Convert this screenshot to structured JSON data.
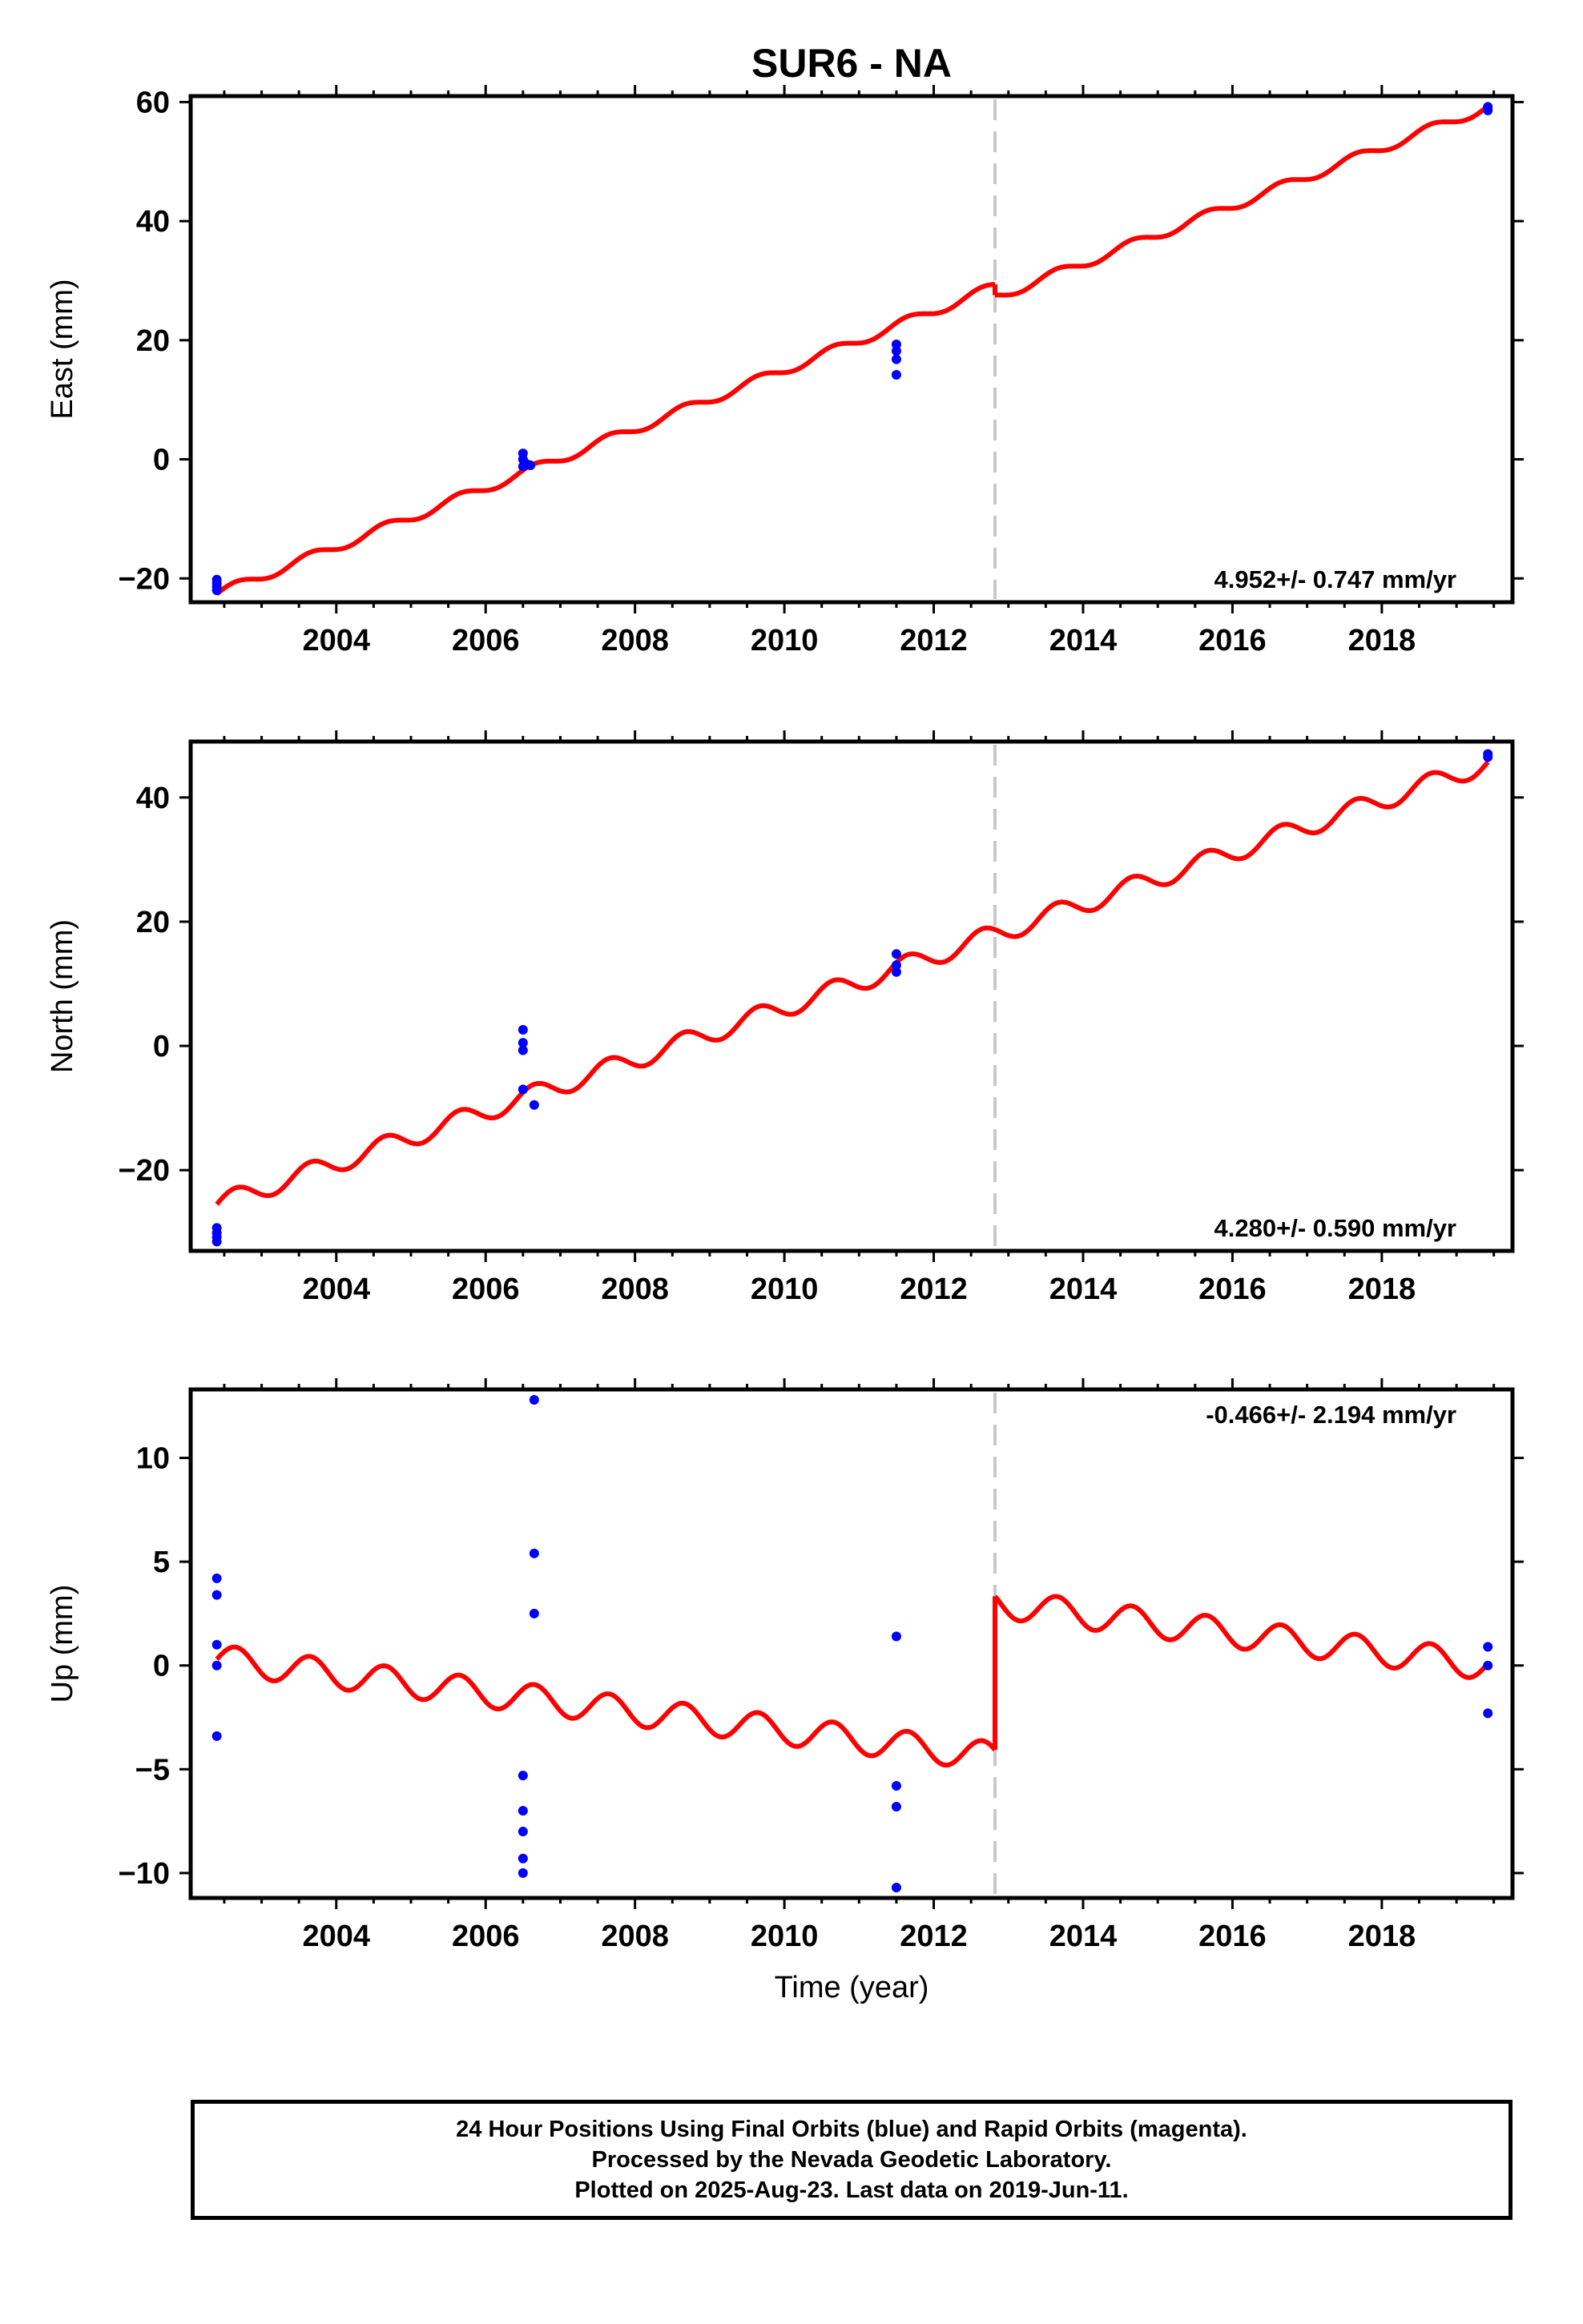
{
  "title": "SUR6 - NA",
  "x_label": "Time (year)",
  "x_tick_labels": [
    "2004",
    "2006",
    "2008",
    "2010",
    "2012",
    "2014",
    "2016",
    "2018"
  ],
  "caption": [
    "24 Hour Positions Using Final Orbits (blue) and Rapid Orbits (magenta).",
    "Processed by the Nevada Geodetic Laboratory.",
    "Plotted on 2025-Aug-23. Last data on 2019-Jun-11."
  ],
  "colors": {
    "model": "#ff0000",
    "final_orbits": "#0000ff",
    "rapid_orbits": "#ff00ff",
    "break_line": "#c8c8c8",
    "frame": "#000000"
  },
  "chart_data": [
    {
      "type": "scatter",
      "component": "east",
      "ylabel": "East (mm)",
      "rate_label": "4.952+/- 0.747 mm/yr",
      "xlim": [
        2002.05,
        2019.75
      ],
      "ylim": [
        -24,
        61
      ],
      "yticks": [
        -20,
        0,
        20,
        40,
        60
      ],
      "equipment_change": 2012.82,
      "model": {
        "segments": [
          {
            "x": [
              2002.4,
              2012.82
            ],
            "y": [
              -22.6,
              29.0
            ]
          },
          {
            "x": [
              2012.82,
              2019.42
            ],
            "y": [
              27.2,
              59.2
            ]
          }
        ],
        "seasonal_amplitude": 0.8
      },
      "points": {
        "x": [
          2002.4,
          2002.4,
          2002.4,
          2002.4,
          2006.5,
          2006.5,
          2006.5,
          2006.55,
          2006.6,
          2011.5,
          2011.5,
          2011.5,
          2011.5,
          2019.42,
          2019.42
        ],
        "y": [
          -20.2,
          -20.8,
          -21.4,
          -22.0,
          1.0,
          0.0,
          -1.2,
          -0.8,
          -1.0,
          19.3,
          18.2,
          16.8,
          14.2,
          59.2,
          58.6
        ]
      }
    },
    {
      "type": "scatter",
      "component": "north",
      "ylabel": "North (mm)",
      "rate_label": "4.280+/- 0.590 mm/yr",
      "xlim": [
        2002.05,
        2019.75
      ],
      "ylim": [
        -33,
        49
      ],
      "yticks": [
        -20,
        0,
        20,
        40
      ],
      "equipment_change": 2012.82,
      "model": {
        "segments": [
          {
            "x": [
              2002.4,
              2019.42
            ],
            "y": [
              -25.5,
              45.5
            ]
          }
        ],
        "seasonal_amplitude": 1.6
      },
      "points": {
        "x": [
          2002.4,
          2002.4,
          2002.4,
          2002.4,
          2006.5,
          2006.5,
          2006.5,
          2006.5,
          2006.65,
          2011.5,
          2011.5,
          2011.5,
          2019.42,
          2019.42
        ],
        "y": [
          -29.3,
          -30.1,
          -30.8,
          -31.5,
          2.6,
          0.5,
          -0.7,
          -7.0,
          -9.5,
          14.8,
          13.0,
          11.9,
          47.0,
          46.5
        ]
      }
    },
    {
      "type": "scatter",
      "component": "up",
      "ylabel": "Up (mm)",
      "rate_label": "-0.466+/- 2.194 mm/yr",
      "xlim": [
        2002.05,
        2019.75
      ],
      "ylim": [
        -11.2,
        13.3
      ],
      "yticks": [
        -10,
        -5,
        0,
        5,
        10
      ],
      "equipment_change": 2012.82,
      "model": {
        "segments": [
          {
            "x": [
              2002.4,
              2012.82
            ],
            "y": [
              0.3,
              -4.4
            ]
          },
          {
            "x": [
              2012.82,
              2019.42
            ],
            "y": [
              3.0,
              0.0
            ]
          }
        ],
        "seasonal_amplitude": 0.7
      },
      "points": {
        "x": [
          2002.4,
          2002.4,
          2002.4,
          2002.4,
          2002.4,
          2006.5,
          2006.5,
          2006.5,
          2006.5,
          2006.5,
          2006.65,
          2006.65,
          2006.65,
          2011.5,
          2011.5,
          2011.5,
          2011.5,
          2019.42,
          2019.42,
          2019.42
        ],
        "y": [
          4.2,
          3.4,
          1.0,
          0.0,
          -3.4,
          -5.3,
          -7.0,
          -8.0,
          -9.3,
          -10.0,
          12.8,
          5.4,
          2.5,
          1.4,
          -5.8,
          -6.8,
          -10.7,
          0.9,
          0.0,
          -2.3
        ]
      }
    }
  ]
}
